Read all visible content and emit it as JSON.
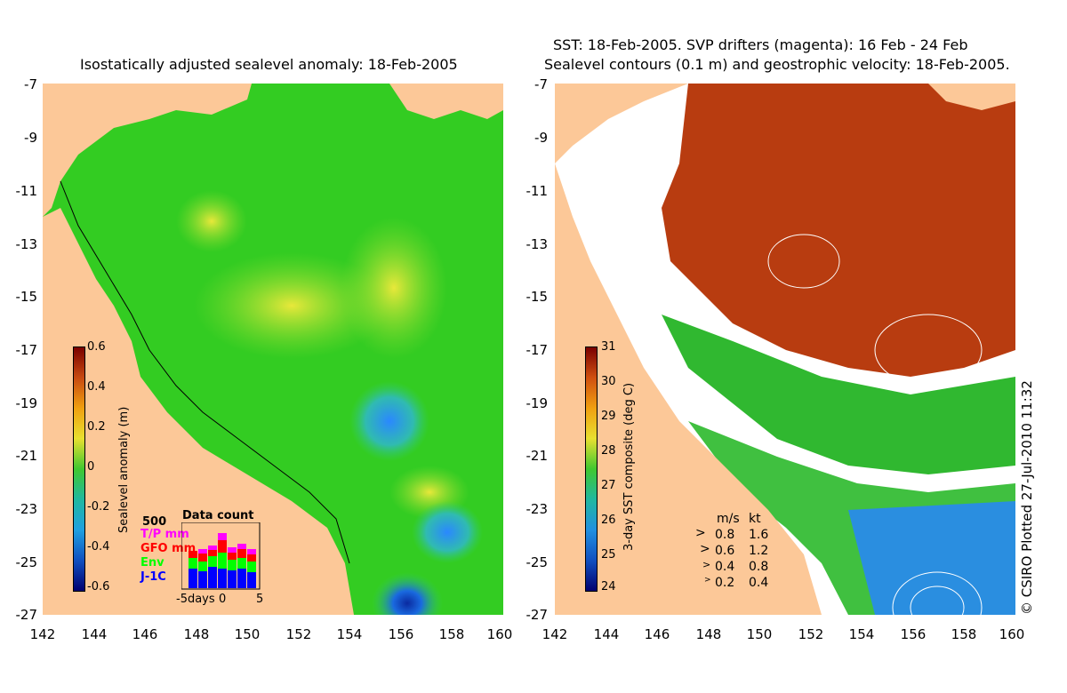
{
  "left_panel": {
    "title": "Isostatically adjusted sealevel anomaly: 18-Feb-2005",
    "colorbar_label": "Sealevel anomaly (m)",
    "colorbar_ticks": [
      "0.6",
      "0.4",
      "0.2",
      "0",
      "-0.2",
      "-0.4",
      "-0.6"
    ],
    "data_count": {
      "title": "Data count",
      "max": "500",
      "series": [
        {
          "name": "T/P mm",
          "color": "#ff00ff"
        },
        {
          "name": "GFO mm",
          "color": "#ff0000"
        },
        {
          "name": "Env",
          "color": "#00ff00"
        },
        {
          "name": "J-1C",
          "color": "#0000ff"
        }
      ],
      "x_ticks": [
        "-5days",
        "0",
        "5"
      ]
    }
  },
  "right_panel": {
    "title_line1": "SST: 18-Feb-2005. SVP drifters (magenta): 16 Feb - 24 Feb",
    "title_line2": "Sealevel contours (0.1 m) and geostrophic velocity: 18-Feb-2005.",
    "colorbar_label": "3-day SST composite (deg C)",
    "colorbar_ticks": [
      "31",
      "30",
      "29",
      "28",
      "27",
      "26",
      "25",
      "24"
    ],
    "speed_legend": {
      "headers": [
        "m/s",
        "kt"
      ],
      "rows": [
        [
          "0.8",
          "1.6"
        ],
        [
          "0.6",
          "1.2"
        ],
        [
          "0.4",
          "0.8"
        ],
        [
          "0.2",
          "0.4"
        ]
      ]
    },
    "credit": "© CSIRO Plotted 27-Jul-2010 11:32"
  },
  "axes": {
    "y_ticks": [
      "-7",
      "-9",
      "-11",
      "-13",
      "-15",
      "-17",
      "-19",
      "-21",
      "-23",
      "-25",
      "-27"
    ],
    "x_ticks": [
      "142",
      "144",
      "146",
      "148",
      "150",
      "152",
      "154",
      "156",
      "158",
      "160"
    ]
  },
  "colors": {
    "land": "#fcc898",
    "sla_background": "#33cc22",
    "sst_warm": "#b83c10",
    "sst_mid": "#30b830",
    "sst_cool": "#2a8ee0"
  }
}
